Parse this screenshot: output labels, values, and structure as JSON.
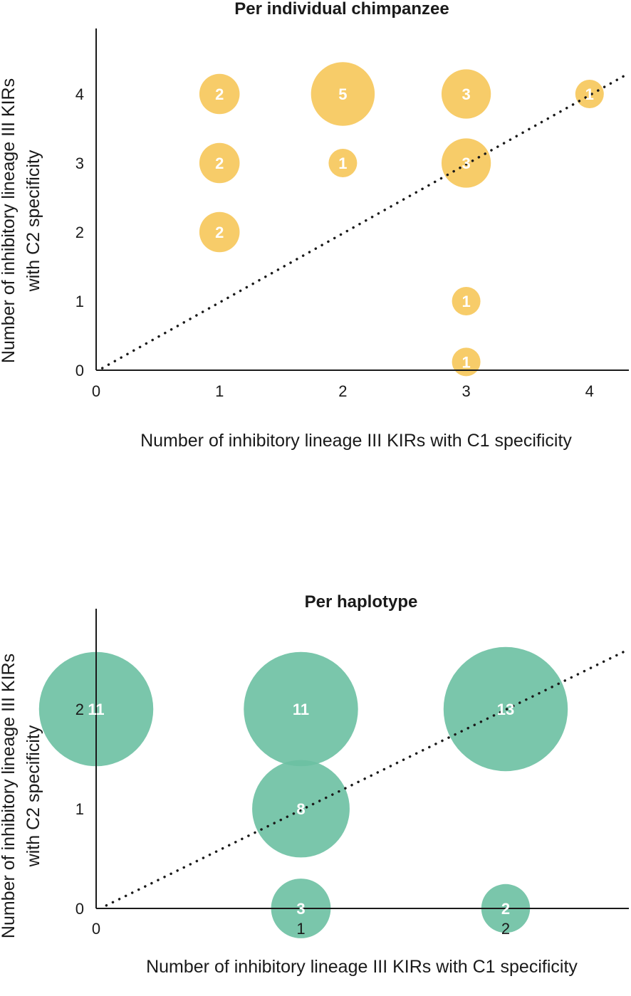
{
  "chart_data": [
    {
      "type": "bubble",
      "title": "Per individual chimpanzee",
      "xlabel": "Number of inhibitory lineage III KIRs with C1 specificity",
      "ylabel_lines": [
        "Number of inhibitory lineage III KIRs",
        "with C2 specificity"
      ],
      "x_ticks": [
        "0",
        "1",
        "2",
        "3",
        "4"
      ],
      "y_ticks": [
        "0",
        "1",
        "2",
        "3",
        "4"
      ],
      "xlim": [
        0,
        4.3
      ],
      "ylim": [
        0,
        4.9
      ],
      "bubble_color": "#f6c34f",
      "trendline": "dotted diagonal",
      "points": [
        {
          "x": 1,
          "y": 4,
          "count": 2,
          "label": "2"
        },
        {
          "x": 2,
          "y": 4,
          "count": 5,
          "label": "5"
        },
        {
          "x": 3,
          "y": 4,
          "count": 3,
          "label": "3"
        },
        {
          "x": 4,
          "y": 4,
          "count": 1,
          "label": "1"
        },
        {
          "x": 1,
          "y": 3,
          "count": 2,
          "label": "2"
        },
        {
          "x": 2,
          "y": 3,
          "count": 1,
          "label": "1"
        },
        {
          "x": 3,
          "y": 3,
          "count": 3,
          "label": "3"
        },
        {
          "x": 1,
          "y": 2,
          "count": 2,
          "label": "2"
        },
        {
          "x": 3,
          "y": 1,
          "count": 1,
          "label": "1"
        },
        {
          "x": 3,
          "y": 0.12,
          "count": 1,
          "label": "1"
        }
      ]
    },
    {
      "type": "bubble",
      "title": "Per haplotype",
      "xlabel": "Number of inhibitory lineage III KIRs with C1 specificity",
      "ylabel_lines": [
        "Number of inhibitory lineage III KIRs",
        "with C2 specificity"
      ],
      "x_ticks": [
        "0",
        "1",
        "2"
      ],
      "y_ticks": [
        "0",
        "1",
        "2"
      ],
      "xlim": [
        0,
        2.6
      ],
      "ylim": [
        0,
        3
      ],
      "bubble_color": "#6cc0a2",
      "trendline": "dotted diagonal",
      "points": [
        {
          "x": 0,
          "y": 2,
          "count": 11,
          "label": "11"
        },
        {
          "x": 1,
          "y": 2,
          "count": 11,
          "label": "11"
        },
        {
          "x": 2,
          "y": 2,
          "count": 13,
          "label": "13"
        },
        {
          "x": 1,
          "y": 1,
          "count": 8,
          "label": "8"
        },
        {
          "x": 1,
          "y": 0,
          "count": 3,
          "label": "3"
        },
        {
          "x": 2,
          "y": 0,
          "count": 2,
          "label": "2"
        }
      ]
    }
  ]
}
